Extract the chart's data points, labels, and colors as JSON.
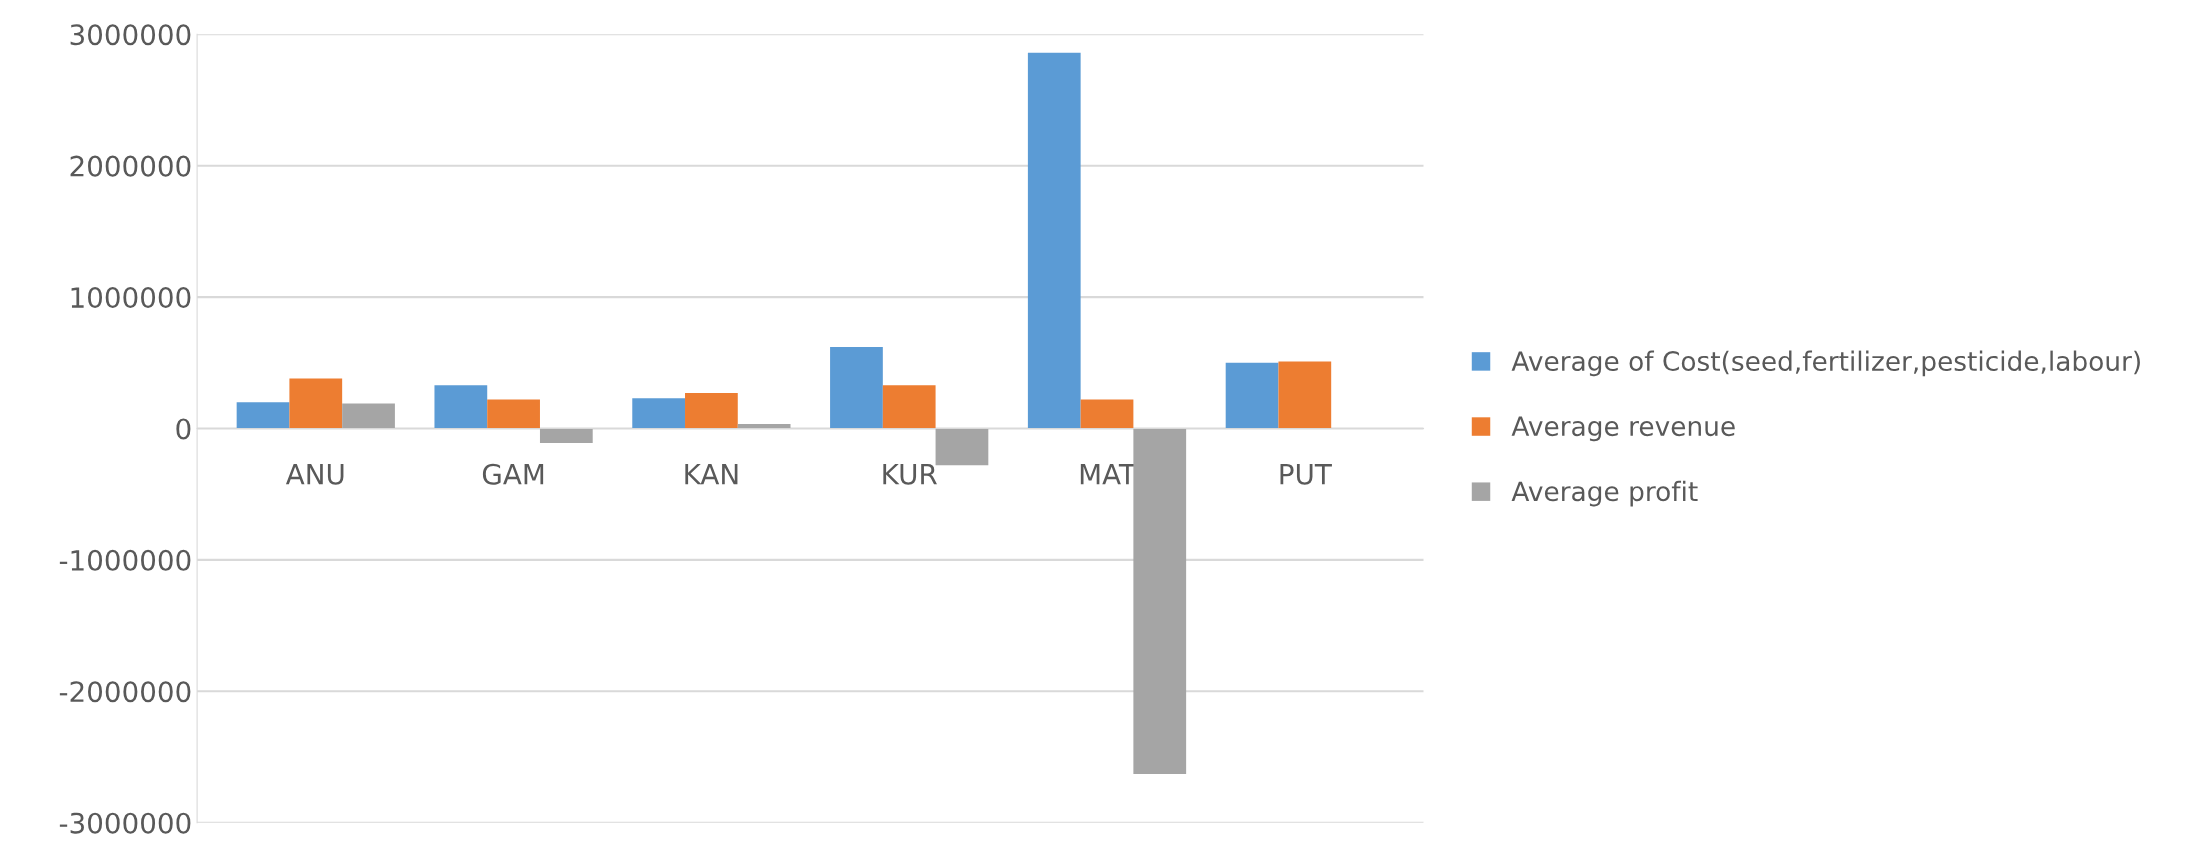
{
  "chart_data": {
    "type": "bar",
    "categories": [
      "ANU",
      "GAM",
      "KAN",
      "KUR",
      "MAT",
      "PUT"
    ],
    "series": [
      {
        "name": "Average of Cost(seed,fertilizer,pesticide,labour)",
        "color": "#5b9bd5",
        "values": [
          200000,
          330000,
          230000,
          620000,
          2860000,
          500000
        ]
      },
      {
        "name": "Average revenue",
        "color": "#ed7d31",
        "values": [
          380000,
          220000,
          270000,
          330000,
          220000,
          510000
        ]
      },
      {
        "name": "Average profit",
        "color": "#a5a5a5",
        "values": [
          190000,
          -110000,
          35000,
          -280000,
          -2630000,
          0
        ]
      }
    ],
    "ylim": [
      -3000000,
      3000000
    ],
    "yticks": [
      -3000000,
      -2000000,
      -1000000,
      0,
      1000000,
      2000000,
      3000000
    ],
    "grid": "y",
    "legend": "right"
  }
}
